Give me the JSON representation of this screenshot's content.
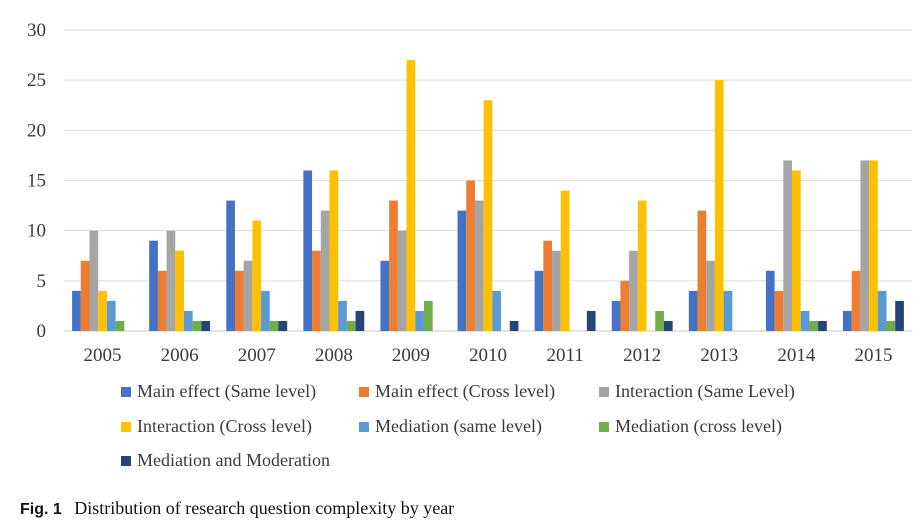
{
  "chart_data": {
    "type": "bar",
    "title": "",
    "xlabel": "",
    "ylabel": "",
    "ylim": [
      0,
      30
    ],
    "yticks": [
      0,
      5,
      10,
      15,
      20,
      25,
      30
    ],
    "grid": true,
    "legend_position": "bottom",
    "categories": [
      "2005",
      "2006",
      "2007",
      "2008",
      "2009",
      "2010",
      "2011",
      "2012",
      "2013",
      "2014",
      "2015"
    ],
    "series": [
      {
        "name": "Main effect (Same level)",
        "color": "#4472C4",
        "values": [
          4,
          9,
          13,
          16,
          7,
          12,
          6,
          3,
          4,
          6,
          2
        ]
      },
      {
        "name": "Main effect (Cross level)",
        "color": "#ED7D31",
        "values": [
          7,
          6,
          6,
          8,
          13,
          15,
          9,
          5,
          12,
          4,
          6
        ]
      },
      {
        "name": "Interaction (Same Level)",
        "color": "#A5A5A5",
        "values": [
          10,
          10,
          7,
          12,
          10,
          13,
          8,
          8,
          7,
          17,
          17
        ]
      },
      {
        "name": "Interaction (Cross level)",
        "color": "#FFC000",
        "values": [
          4,
          8,
          11,
          16,
          27,
          23,
          14,
          13,
          25,
          16,
          17
        ]
      },
      {
        "name": "Mediation (same level)",
        "color": "#5B9BD5",
        "values": [
          3,
          2,
          4,
          3,
          2,
          4,
          0,
          0,
          4,
          2,
          4
        ]
      },
      {
        "name": "Mediation (cross level)",
        "color": "#70AD47",
        "values": [
          1,
          1,
          1,
          1,
          3,
          0,
          0,
          2,
          0,
          1,
          1
        ]
      },
      {
        "name": "Mediation and Moderation",
        "color": "#264478",
        "values": [
          0,
          1,
          1,
          2,
          0,
          1,
          2,
          1,
          0,
          1,
          3
        ]
      }
    ]
  },
  "caption": {
    "label": "Fig. 1",
    "text": "Distribution of research question complexity by year"
  }
}
